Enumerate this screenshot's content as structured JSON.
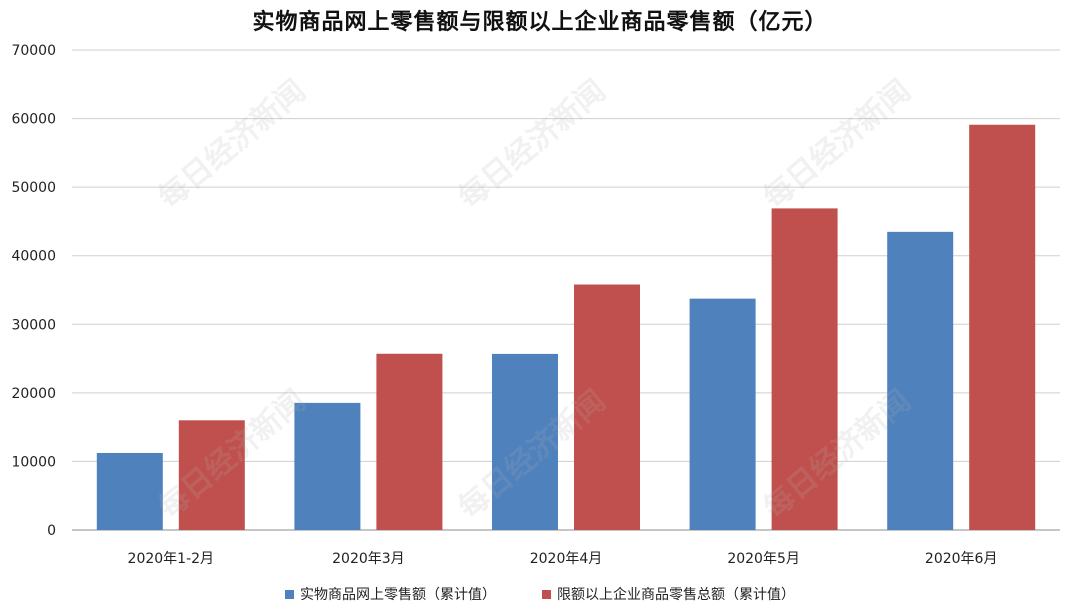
{
  "chart_data": {
    "type": "bar",
    "title": "实物商品网上零售额与限额以上企业商品零售额（亿元）",
    "categories": [
      "2020年1-2月",
      "2020年3月",
      "2020年4月",
      "2020年5月",
      "2020年6月"
    ],
    "series": [
      {
        "name": "实物商品网上零售额（累计值）",
        "color": "#4F81BD",
        "values": [
          11233,
          18536,
          25682,
          33739,
          43481
        ]
      },
      {
        "name": "限额以上企业商品零售总额（累计值）",
        "color": "#C0504D",
        "values": [
          16000,
          25700,
          35800,
          46900,
          59100
        ]
      }
    ],
    "y_ticks": [
      "0",
      "10000",
      "20000",
      "30000",
      "40000",
      "50000",
      "60000",
      "70000"
    ],
    "ylim": [
      0,
      70000
    ],
    "grid": true,
    "legend_position": "bottom",
    "xlabel": "",
    "ylabel": ""
  },
  "watermark": {
    "text": "每日经济新闻"
  }
}
